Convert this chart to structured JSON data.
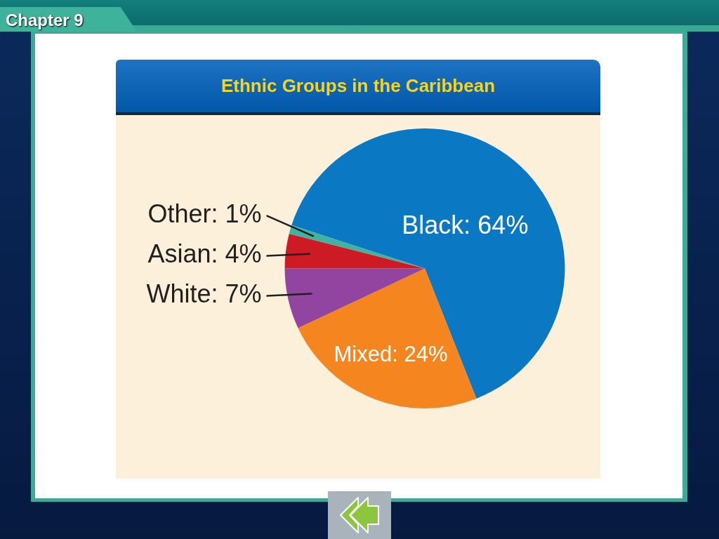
{
  "chart_data": {
    "type": "pie",
    "title": "Ethnic Groups in the Caribbean",
    "categories": [
      "Black",
      "Mixed",
      "White",
      "Asian",
      "Other"
    ],
    "values": [
      64,
      24,
      7,
      4,
      1
    ],
    "colors": [
      "#0a78c2",
      "#f5861f",
      "#9145a1",
      "#cc1b24",
      "#3db3a2"
    ],
    "value_labels": [
      "64%",
      "24%",
      "7%",
      "4%",
      "1%"
    ],
    "annotations": [
      "Chapter 9"
    ]
  }
}
